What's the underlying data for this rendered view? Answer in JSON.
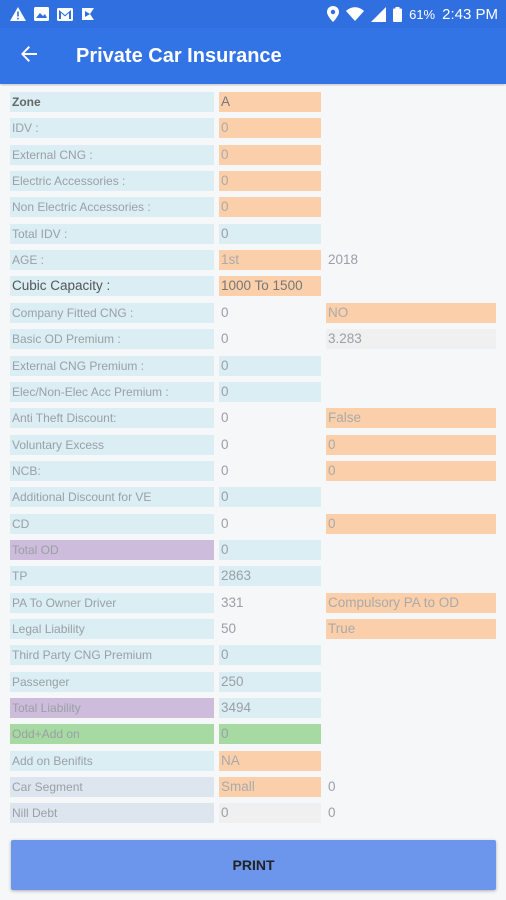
{
  "status_bar": {
    "battery_percent": "61%",
    "time": "2:43 PM",
    "icons_left": [
      "warning-icon",
      "image-icon",
      "gmail-icon",
      "flag-icon"
    ],
    "icons_right": [
      "location-icon",
      "wifi-icon",
      "signal-icon",
      "battery-icon"
    ]
  },
  "app_bar": {
    "title": "Private Car Insurance",
    "back_icon": "arrow-back-icon"
  },
  "rows": [
    {
      "label": "Zone",
      "label_style": "bold",
      "c2": "A",
      "c2_style": "orange-dark",
      "c3": "",
      "c3_style": "empty"
    },
    {
      "label": "IDV :",
      "label_style": "",
      "c2": "0",
      "c2_style": "orange",
      "c3": "",
      "c3_style": "empty"
    },
    {
      "label": "External CNG :",
      "label_style": "",
      "c2": "0",
      "c2_style": "orange",
      "c3": "",
      "c3_style": "empty"
    },
    {
      "label": "Electric Accessories :",
      "label_style": "",
      "c2": "0",
      "c2_style": "orange",
      "c3": "",
      "c3_style": "empty"
    },
    {
      "label": "Non Electric Accessories :",
      "label_style": "",
      "c2": "0",
      "c2_style": "orange",
      "c3": "",
      "c3_style": "empty"
    },
    {
      "label": "Total IDV :",
      "label_style": "",
      "c2": "0",
      "c2_style": "cyan",
      "c3": "",
      "c3_style": "empty"
    },
    {
      "label": "AGE :",
      "label_style": "",
      "c2": "1st",
      "c2_style": "orange",
      "c3": "2018",
      "c3_style": "plain"
    },
    {
      "label": "Cubic Capacity :",
      "label_style": "big",
      "c2": "1000 To 1500",
      "c2_style": "orange-dark",
      "c3": "",
      "c3_style": "empty"
    },
    {
      "label": "Company Fitted CNG :",
      "label_style": "",
      "c2": "0",
      "c2_style": "plain",
      "c3": "NO",
      "c3_style": "orange"
    },
    {
      "label": "Basic OD Premium :",
      "label_style": "",
      "c2": "0",
      "c2_style": "plain",
      "c3": "3.283",
      "c3_style": "lightgrey"
    },
    {
      "label": "External CNG Premium :",
      "label_style": "",
      "c2": "0",
      "c2_style": "cyan",
      "c3": "",
      "c3_style": "empty"
    },
    {
      "label": "Elec/Non-Elec Acc Premium :",
      "label_style": "",
      "c2": "0",
      "c2_style": "cyan",
      "c3": "",
      "c3_style": "empty"
    },
    {
      "label": "Anti Theft Discount:",
      "label_style": "",
      "c2": "0",
      "c2_style": "plain",
      "c3": "False",
      "c3_style": "orange"
    },
    {
      "label": "Voluntary Excess",
      "label_style": "",
      "c2": "0",
      "c2_style": "plain",
      "c3": "0",
      "c3_style": "orange"
    },
    {
      "label": "NCB:",
      "label_style": "",
      "c2": "0",
      "c2_style": "plain",
      "c3": "0",
      "c3_style": "orange"
    },
    {
      "label": "Additional Discount for VE",
      "label_style": "",
      "c2": "0",
      "c2_style": "cyan",
      "c3": "",
      "c3_style": "empty"
    },
    {
      "label": "CD",
      "label_style": "",
      "c2": "0",
      "c2_style": "plain",
      "c3": "0",
      "c3_style": "orange"
    },
    {
      "label": "Total OD",
      "label_style": "purple",
      "c2": "0",
      "c2_style": "cyan",
      "c3": "",
      "c3_style": "empty"
    },
    {
      "label": "TP",
      "label_style": "",
      "c2": "2863",
      "c2_style": "cyan",
      "c3": "",
      "c3_style": "empty"
    },
    {
      "label": "PA To Owner Driver",
      "label_style": "",
      "c2": "331",
      "c2_style": "plain",
      "c3": "Compulsory PA to OD",
      "c3_style": "orange"
    },
    {
      "label": "Legal Liability",
      "label_style": "",
      "c2": "50",
      "c2_style": "plain",
      "c3": "True",
      "c3_style": "orange"
    },
    {
      "label": "Third Party CNG Premium",
      "label_style": "",
      "c2": "0",
      "c2_style": "cyan",
      "c3": "",
      "c3_style": "empty"
    },
    {
      "label": "Passenger",
      "label_style": "",
      "c2": "250",
      "c2_style": "cyan",
      "c3": "",
      "c3_style": "empty"
    },
    {
      "label": "Total Liability",
      "label_style": "purple",
      "c2": "3494",
      "c2_style": "cyan",
      "c3": "",
      "c3_style": "empty"
    },
    {
      "label": "Odd+Add on",
      "label_style": "green",
      "c2": "0",
      "c2_style": "green",
      "c3": "",
      "c3_style": "empty"
    },
    {
      "label": "Add on Benifits",
      "label_style": "",
      "c2": "NA",
      "c2_style": "orange",
      "c3": "",
      "c3_style": "empty"
    },
    {
      "label": "Car Segment",
      "label_style": "grey",
      "c2": "Small",
      "c2_style": "orange",
      "c3": "0",
      "c3_style": "plain"
    },
    {
      "label": "Nill Debt",
      "label_style": "grey",
      "c2": "0",
      "c2_style": "lightgrey",
      "c3": "0",
      "c3_style": "plain"
    }
  ],
  "print_button": {
    "label": "PRINT"
  },
  "colors": {
    "status_bar": "#2f6fe0",
    "app_bar": "#3273e6",
    "label_bg": "#daeef4",
    "input_bg": "#fbcfaa",
    "purple_bg": "#cdbcdb",
    "green_bg": "#a7d9a2",
    "button_bg": "#6b96ec"
  }
}
